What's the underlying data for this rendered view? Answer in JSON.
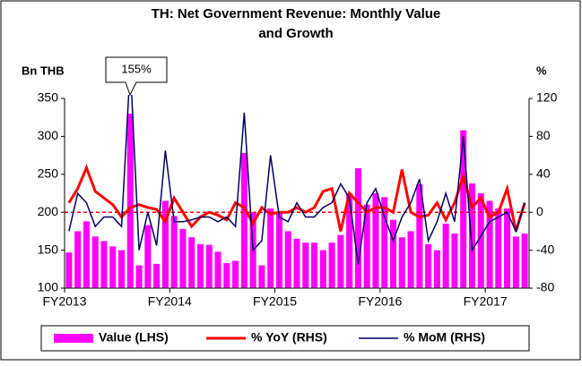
{
  "chart_data": {
    "type": "bar_line",
    "title": [
      "TH: Net Government Revenue: Monthly Value",
      "and Growth"
    ],
    "y_label": "Bn THB",
    "y2_label": "%",
    "categories": [
      "FY2013",
      null,
      null,
      null,
      null,
      null,
      null,
      null,
      null,
      null,
      null,
      null,
      "FY2014",
      null,
      null,
      null,
      null,
      null,
      null,
      null,
      null,
      null,
      null,
      null,
      "FY2015",
      null,
      null,
      null,
      null,
      null,
      null,
      null,
      null,
      null,
      null,
      null,
      "FY2016",
      null,
      null,
      null,
      null,
      null,
      null,
      null,
      null,
      null,
      null,
      null,
      "FY2017",
      null,
      null,
      null,
      null
    ],
    "series": [
      {
        "name": "Value (LHS)",
        "kind": "bar",
        "color": "#ff00ff",
        "values": [
          147,
          175,
          188,
          168,
          162,
          155,
          150,
          330,
          130,
          183,
          132,
          215,
          195,
          178,
          167,
          158,
          157,
          148,
          133,
          136,
          278,
          200,
          130,
          205,
          200,
          175,
          165,
          160,
          160,
          150,
          160,
          170,
          225,
          258,
          210,
          225,
          220,
          190,
          167,
          175,
          237,
          158,
          150,
          185,
          172,
          308,
          238,
          225,
          215,
          205,
          205,
          168,
          172
        ]
      },
      {
        "name": "% YoY (RHS)",
        "kind": "line",
        "axis": "y2",
        "color": "#ff0000",
        "values": [
          10,
          25,
          47,
          22,
          15,
          8,
          -5,
          5,
          8,
          5,
          3,
          -10,
          15,
          0,
          -15,
          -5,
          0,
          -3,
          -8,
          10,
          5,
          -12,
          5,
          -2,
          0,
          0,
          5,
          0,
          5,
          22,
          25,
          -20,
          20,
          10,
          0,
          5,
          5,
          0,
          45,
          0,
          -5,
          -3,
          10,
          -8,
          10,
          38,
          5,
          15,
          -5,
          0,
          25,
          -20,
          10
        ]
      },
      {
        "name": "% MoM (RHS)",
        "kind": "line",
        "axis": "y2",
        "color": "#000066",
        "values": [
          -20,
          20,
          10,
          -15,
          -5,
          -5,
          -15,
          155,
          -40,
          0,
          -35,
          65,
          -10,
          -10,
          -8,
          -5,
          -5,
          -10,
          -5,
          -15,
          105,
          -40,
          -30,
          60,
          -5,
          -10,
          10,
          -5,
          -5,
          5,
          10,
          30,
          15,
          -55,
          10,
          25,
          -5,
          -30,
          -5,
          10,
          35,
          -30,
          -10,
          20,
          -10,
          80,
          -40,
          -25,
          -10,
          -5,
          0,
          -20,
          10
        ]
      }
    ],
    "ylim": [
      100,
      350
    ],
    "yticks": [
      100,
      150,
      200,
      250,
      300,
      350
    ],
    "y2lim": [
      -80,
      120
    ],
    "y2ticks": [
      -80,
      -40,
      0,
      40,
      80,
      120
    ],
    "reference_line": {
      "value": 0,
      "axis": "y2",
      "color": "#ff0000"
    },
    "annotations": [
      {
        "text": "155%"
      }
    ],
    "legend": "bottom"
  }
}
